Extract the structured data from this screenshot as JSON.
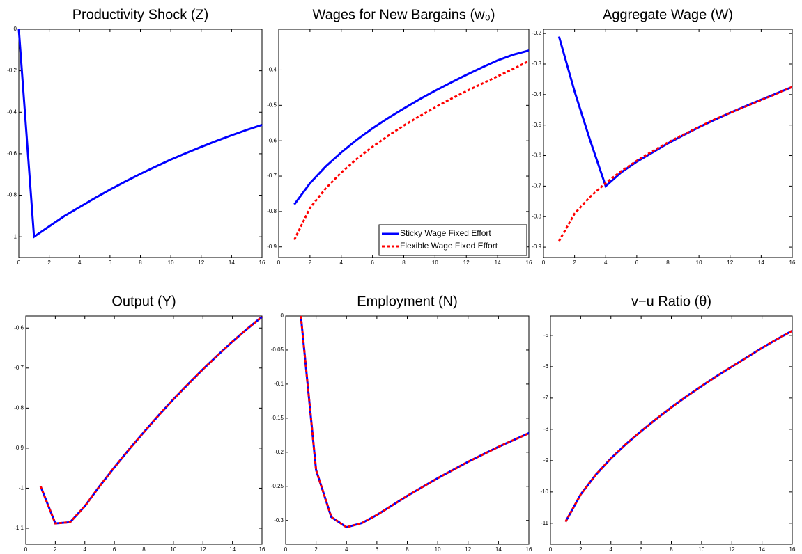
{
  "chart_data": [
    {
      "type": "line",
      "title": "Productivity Shock (Z)",
      "x": [
        0,
        1,
        2,
        3,
        4,
        5,
        6,
        7,
        8,
        9,
        10,
        11,
        12,
        13,
        14,
        15,
        16
      ],
      "series": [
        {
          "color": "#0000ff",
          "dash": false,
          "values": [
            0,
            -1,
            -0.95,
            -0.9,
            -0.857,
            -0.814,
            -0.773,
            -0.734,
            -0.697,
            -0.662,
            -0.628,
            -0.597,
            -0.567,
            -0.538,
            -0.511,
            -0.485,
            -0.461
          ]
        }
      ],
      "xlim": [
        0,
        16
      ],
      "xticks": [
        0,
        2,
        4,
        6,
        8,
        10,
        12,
        14,
        16
      ],
      "ylim": [
        -1.1,
        0
      ],
      "yticks": [
        0,
        -0.2,
        -0.4,
        -0.6,
        -0.8,
        -1
      ]
    },
    {
      "type": "line",
      "title": "Wages for New Bargains (w₀)",
      "x": [
        1,
        2,
        3,
        4,
        5,
        6,
        7,
        8,
        9,
        10,
        11,
        12,
        13,
        14,
        15,
        16
      ],
      "series": [
        {
          "name": "Sticky Wage Fixed Effort",
          "color": "#0000ff",
          "dash": false,
          "values": [
            -0.78,
            -0.72,
            -0.673,
            -0.633,
            -0.597,
            -0.565,
            -0.536,
            -0.509,
            -0.483,
            -0.459,
            -0.436,
            -0.414,
            -0.393,
            -0.373,
            -0.357,
            -0.345
          ]
        },
        {
          "name": "Flexible Wage Fixed Effort",
          "color": "#ff0000",
          "dash": true,
          "values": [
            -0.88,
            -0.79,
            -0.735,
            -0.69,
            -0.651,
            -0.617,
            -0.586,
            -0.557,
            -0.531,
            -0.506,
            -0.482,
            -0.46,
            -0.439,
            -0.418,
            -0.397,
            -0.375
          ]
        }
      ],
      "legend": "lower right",
      "xlim": [
        0,
        16
      ],
      "xticks": [
        0,
        2,
        4,
        6,
        8,
        10,
        12,
        14,
        16
      ],
      "ylim": [
        -0.93,
        -0.285
      ],
      "yticks": [
        -0.4,
        -0.5,
        -0.6,
        -0.7,
        -0.8,
        -0.9
      ]
    },
    {
      "type": "line",
      "title": "Aggregate Wage (W)",
      "x": [
        1,
        2,
        3,
        4,
        5,
        6,
        7,
        8,
        9,
        10,
        11,
        12,
        13,
        14,
        15,
        16
      ],
      "series": [
        {
          "color": "#0000ff",
          "dash": false,
          "values": [
            -0.21,
            -0.39,
            -0.55,
            -0.7,
            -0.655,
            -0.62,
            -0.59,
            -0.56,
            -0.533,
            -0.507,
            -0.483,
            -0.46,
            -0.438,
            -0.417,
            -0.396,
            -0.375
          ]
        },
        {
          "color": "#ff0000",
          "dash": true,
          "values": [
            -0.88,
            -0.79,
            -0.735,
            -0.69,
            -0.651,
            -0.617,
            -0.586,
            -0.557,
            -0.531,
            -0.506,
            -0.482,
            -0.46,
            -0.439,
            -0.418,
            -0.397,
            -0.375
          ]
        }
      ],
      "xlim": [
        0,
        16
      ],
      "xticks": [
        0,
        2,
        4,
        6,
        8,
        10,
        12,
        14,
        16
      ],
      "ylim": [
        -0.934,
        -0.186
      ],
      "yticks": [
        -0.2,
        -0.3,
        -0.4,
        -0.5,
        -0.6,
        -0.7,
        -0.8,
        -0.9
      ]
    },
    {
      "type": "line",
      "title": "Output (Y)",
      "x": [
        1,
        2,
        3,
        4,
        5,
        6,
        7,
        8,
        9,
        10,
        11,
        12,
        13,
        14,
        15,
        16
      ],
      "series": [
        {
          "color": "#0000ff",
          "dash": false,
          "values": [
            -0.995,
            -1.088,
            -1.085,
            -1.045,
            -0.995,
            -0.948,
            -0.903,
            -0.86,
            -0.818,
            -0.778,
            -0.74,
            -0.703,
            -0.668,
            -0.634,
            -0.602,
            -0.572
          ]
        },
        {
          "color": "#ff0000",
          "dash": true,
          "values": [
            -0.995,
            -1.088,
            -1.085,
            -1.045,
            -0.995,
            -0.948,
            -0.903,
            -0.86,
            -0.818,
            -0.778,
            -0.74,
            -0.703,
            -0.668,
            -0.634,
            -0.602,
            -0.572
          ]
        }
      ],
      "xlim": [
        0,
        16
      ],
      "xticks": [
        0,
        2,
        4,
        6,
        8,
        10,
        12,
        14,
        16
      ],
      "ylim": [
        -1.14,
        -0.57
      ],
      "yticks": [
        -0.6,
        -0.7,
        -0.8,
        -0.9,
        -1,
        -1.1
      ]
    },
    {
      "type": "line",
      "title": "Employment (N)",
      "x": [
        1,
        2,
        3,
        4,
        5,
        6,
        7,
        8,
        9,
        10,
        11,
        12,
        13,
        14,
        15,
        16
      ],
      "series": [
        {
          "color": "#0000ff",
          "dash": false,
          "values": [
            0,
            -0.226,
            -0.295,
            -0.31,
            -0.304,
            -0.292,
            -0.278,
            -0.264,
            -0.251,
            -0.238,
            -0.226,
            -0.214,
            -0.203,
            -0.192,
            -0.182,
            -0.172
          ]
        },
        {
          "color": "#ff0000",
          "dash": true,
          "values": [
            0,
            -0.226,
            -0.295,
            -0.31,
            -0.304,
            -0.292,
            -0.278,
            -0.264,
            -0.251,
            -0.238,
            -0.226,
            -0.214,
            -0.203,
            -0.192,
            -0.182,
            -0.172
          ]
        }
      ],
      "xlim": [
        0,
        16
      ],
      "xticks": [
        0,
        2,
        4,
        6,
        8,
        10,
        12,
        14,
        16
      ],
      "ylim": [
        -0.335,
        0
      ],
      "yticks": [
        0,
        -0.05,
        -0.1,
        -0.15,
        -0.2,
        -0.25,
        -0.3
      ]
    },
    {
      "type": "line",
      "title": "v−u Ratio (θ)",
      "x": [
        1,
        2,
        3,
        4,
        5,
        6,
        7,
        8,
        9,
        10,
        11,
        12,
        13,
        14,
        15,
        16
      ],
      "series": [
        {
          "color": "#0000ff",
          "dash": false,
          "values": [
            -10.95,
            -10.08,
            -9.45,
            -8.93,
            -8.47,
            -8.06,
            -7.67,
            -7.3,
            -6.95,
            -6.62,
            -6.3,
            -6,
            -5.7,
            -5.4,
            -5.12,
            -4.85
          ]
        },
        {
          "color": "#ff0000",
          "dash": true,
          "values": [
            -10.95,
            -10.08,
            -9.45,
            -8.93,
            -8.47,
            -8.06,
            -7.67,
            -7.3,
            -6.95,
            -6.62,
            -6.3,
            -6,
            -5.7,
            -5.4,
            -5.12,
            -4.85
          ]
        }
      ],
      "xlim": [
        0,
        16
      ],
      "xticks": [
        0,
        2,
        4,
        6,
        8,
        10,
        12,
        14,
        16
      ],
      "ylim": [
        -11.67,
        -4.38
      ],
      "yticks": [
        -5,
        -6,
        -7,
        -8,
        -9,
        -10,
        -11
      ]
    }
  ]
}
